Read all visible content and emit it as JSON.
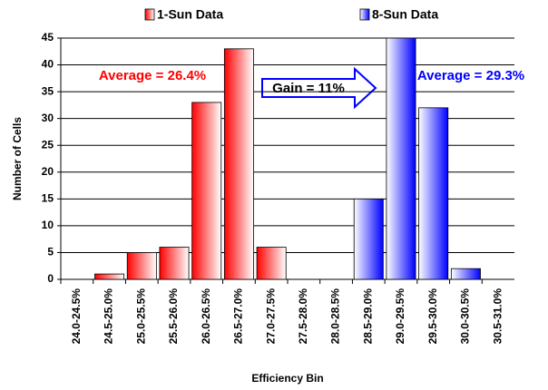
{
  "chart_data": {
    "type": "bar",
    "categories": [
      "24.0-24.5%",
      "24.5-25.0%",
      "25.0-25.5%",
      "25.5-26.0%",
      "26.0-26.5%",
      "26.5-27.0%",
      "27.0-27.5%",
      "27.5-28.0%",
      "28.0-28.5%",
      "28.5-29.0%",
      "29.0-29.5%",
      "29.5-30.0%",
      "30.0-30.5%",
      "30.5-31.0%"
    ],
    "series": [
      {
        "name": "1-Sun Data",
        "color": "#ff0000",
        "values": [
          0,
          1,
          5,
          6,
          33,
          43,
          6,
          0,
          0,
          0,
          0,
          0,
          0,
          0
        ]
      },
      {
        "name": "8-Sun Data",
        "color": "#0000ff",
        "values": [
          0,
          0,
          0,
          0,
          0,
          0,
          0,
          0,
          0,
          15,
          45,
          32,
          2,
          0
        ]
      }
    ],
    "xlabel": "Efficiency Bin",
    "ylabel": "Number of Cells",
    "annotations": [
      "Average = 26.4%",
      "Gain = 11%",
      "Average = 29.3%"
    ],
    "ylim": [
      0,
      45
    ],
    "yticks": [
      0,
      5,
      10,
      15,
      20,
      25,
      30,
      35,
      40,
      45
    ],
    "grid": true
  }
}
